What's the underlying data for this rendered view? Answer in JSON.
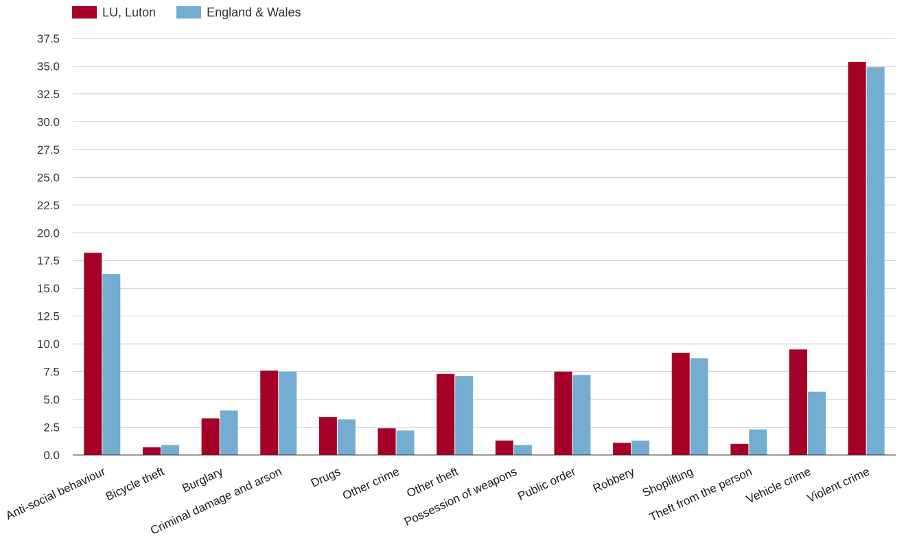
{
  "chart_data": {
    "type": "bar",
    "categories": [
      "Anti-social behaviour",
      "Bicycle theft",
      "Burglary",
      "Criminal damage and arson",
      "Drugs",
      "Other crime",
      "Other theft",
      "Possession of weapons",
      "Public order",
      "Robbery",
      "Shoplifting",
      "Theft from the person",
      "Vehicle crime",
      "Violent crime"
    ],
    "series": [
      {
        "name": "LU, Luton",
        "color": "#a50026",
        "values": [
          18.2,
          0.7,
          3.3,
          7.6,
          3.4,
          2.4,
          7.3,
          1.3,
          7.5,
          1.1,
          9.2,
          1.0,
          9.5,
          35.4
        ]
      },
      {
        "name": "England & Wales",
        "color": "#74add1",
        "values": [
          16.3,
          0.9,
          4.0,
          7.5,
          3.2,
          2.2,
          7.1,
          0.9,
          7.2,
          1.3,
          8.7,
          2.3,
          5.7,
          34.9
        ]
      }
    ],
    "yticks": [
      "0.0",
      "2.5",
      "5.0",
      "7.5",
      "10.0",
      "12.5",
      "15.0",
      "17.5",
      "20.0",
      "22.5",
      "25.0",
      "27.5",
      "30.0",
      "32.5",
      "35.0",
      "37.5"
    ],
    "ylim": [
      0,
      37.5
    ],
    "grid": true,
    "legend_position": "top-left",
    "title": "",
    "xlabel": "",
    "ylabel": ""
  }
}
